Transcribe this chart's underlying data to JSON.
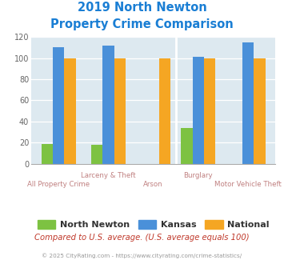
{
  "title_line1": "2019 North Newton",
  "title_line2": "Property Crime Comparison",
  "north_newton": [
    19,
    18,
    0,
    34,
    0
  ],
  "kansas": [
    110,
    112,
    0,
    101,
    115
  ],
  "national": [
    100,
    100,
    100,
    100,
    100
  ],
  "color_nn": "#7dc242",
  "color_ks": "#4a90d9",
  "color_nat": "#f5a623",
  "ylim": [
    0,
    120
  ],
  "yticks": [
    0,
    20,
    40,
    60,
    80,
    100,
    120
  ],
  "background_color": "#dde9f0",
  "legend_labels": [
    "North Newton",
    "Kansas",
    "National"
  ],
  "cat_labels_upper": [
    "",
    "Larceny & Theft",
    "",
    "Burglary",
    ""
  ],
  "cat_labels_lower": [
    "All Property Crime",
    "",
    "Arson",
    "",
    "Motor Vehicle Theft"
  ],
  "footer_text": "Compared to U.S. average. (U.S. average equals 100)",
  "copyright_text": "© 2025 CityRating.com - https://www.cityrating.com/crime-statistics/",
  "title_color": "#1a7ed4",
  "footer_color": "#c0392b",
  "copyright_color": "#999999",
  "xlabel_color": "#c08080"
}
